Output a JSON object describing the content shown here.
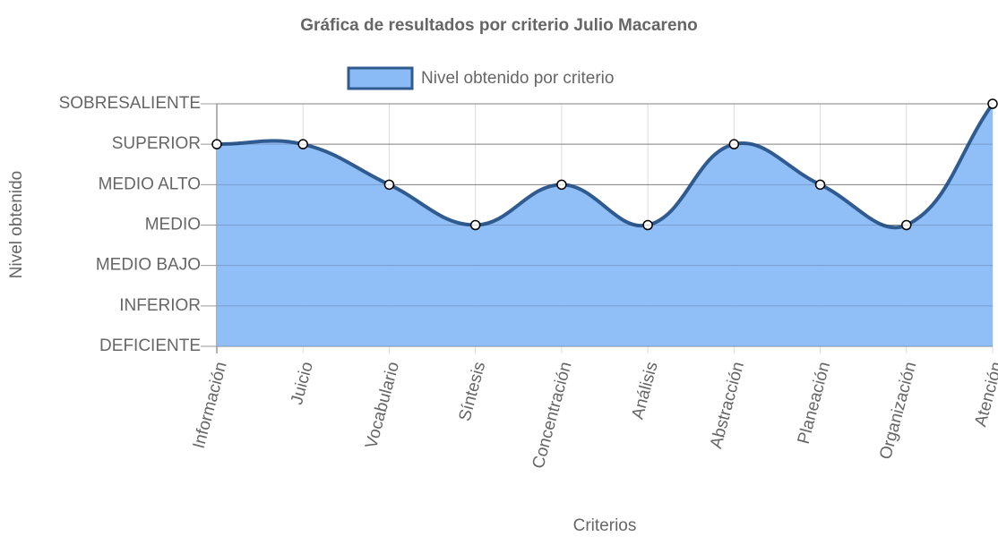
{
  "chart_data": {
    "type": "area",
    "title": "Gráfica de resultados por criterio Julio Macareno",
    "x_label": "Criterios",
    "y_label": "Nivel obtenido",
    "categories": [
      "Información",
      "Juicio",
      "Vocabulario",
      "Síntesis",
      "Concentración",
      "Análisis",
      "Abstracción",
      "Planeación",
      "Organización",
      "Atención"
    ],
    "series": [
      {
        "name": "Nivel obtenido por criterio",
        "color": "#2f5b90",
        "fill": "#8abbf7",
        "values": [
          5,
          5,
          4,
          3,
          4,
          3,
          5,
          4,
          3,
          6
        ]
      }
    ],
    "ylim": [
      0,
      6
    ],
    "yticks": [
      {
        "value": 0,
        "label": "DEFICIENTE"
      },
      {
        "value": 1,
        "label": "INFERIOR"
      },
      {
        "value": 2,
        "label": "MEDIO BAJO"
      },
      {
        "value": 3,
        "label": "MEDIO"
      },
      {
        "value": 4,
        "label": "MEDIO ALTO"
      },
      {
        "value": 5,
        "label": "SUPERIOR"
      },
      {
        "value": 6,
        "label": "SOBRESALIENTE"
      }
    ],
    "grid": true,
    "legend": "top"
  }
}
